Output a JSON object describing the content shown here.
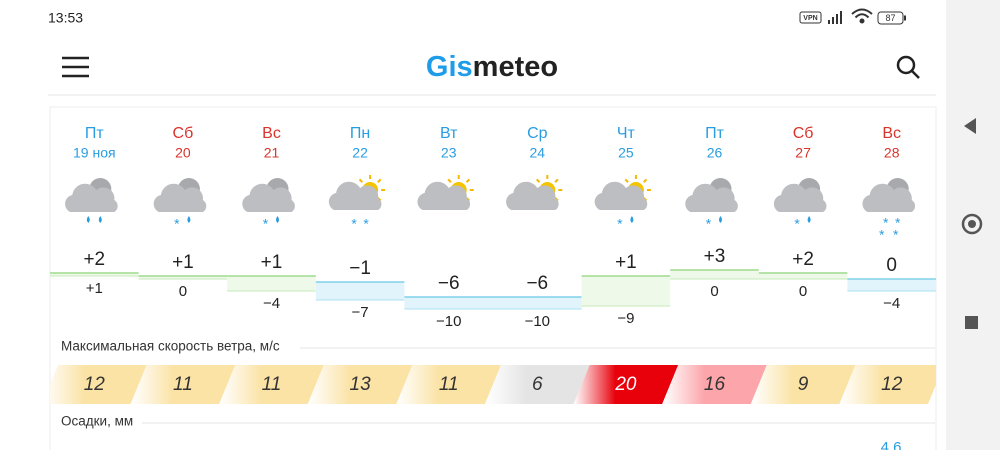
{
  "status_bar": {
    "time": "13:53",
    "vpn": "VPN",
    "battery": "87"
  },
  "header": {
    "logo_part1": "Gis",
    "logo_part2": "meteo"
  },
  "days": [
    {
      "name": "Пт",
      "date": "19 ноя",
      "weekend": false
    },
    {
      "name": "Сб",
      "date": "20",
      "weekend": true
    },
    {
      "name": "Вс",
      "date": "21",
      "weekend": true
    },
    {
      "name": "Пн",
      "date": "22",
      "weekend": false
    },
    {
      "name": "Вт",
      "date": "23",
      "weekend": false
    },
    {
      "name": "Ср",
      "date": "24",
      "weekend": false
    },
    {
      "name": "Чт",
      "date": "25",
      "weekend": false
    },
    {
      "name": "Пт",
      "date": "26",
      "weekend": false
    },
    {
      "name": "Сб",
      "date": "27",
      "weekend": true
    },
    {
      "name": "Вс",
      "date": "28",
      "weekend": true
    }
  ],
  "temperature": {
    "max_values": [
      2,
      1,
      1,
      -1,
      -6,
      -6,
      1,
      3,
      2,
      0
    ],
    "max_labels": [
      "+2",
      "+1",
      "+1",
      "−1",
      "−6",
      "−6",
      "+1",
      "+3",
      "+2",
      "0"
    ],
    "min_values": [
      1,
      0,
      -4,
      -7,
      -10,
      -10,
      -9,
      0,
      0,
      -4
    ],
    "min_labels": [
      "+1",
      "0",
      "−4",
      "−7",
      "−10",
      "−10",
      "−9",
      "0",
      "0",
      "−4"
    ]
  },
  "wind": {
    "label": "Максимальная скорость ветра, м/с",
    "values": [
      12,
      11,
      11,
      13,
      11,
      6,
      20,
      16,
      9,
      12
    ],
    "colors": [
      "#fbe3a6",
      "#fbe3a6",
      "#fbe3a6",
      "#fbe3a6",
      "#fbe3a6",
      "#e4e4e4",
      "#e8000b",
      "#fca6ab",
      "#fbe3a6",
      "#fbe3a6"
    ]
  },
  "precipitation": {
    "label": "Осадки, мм",
    "partial_value": "4,6"
  }
}
